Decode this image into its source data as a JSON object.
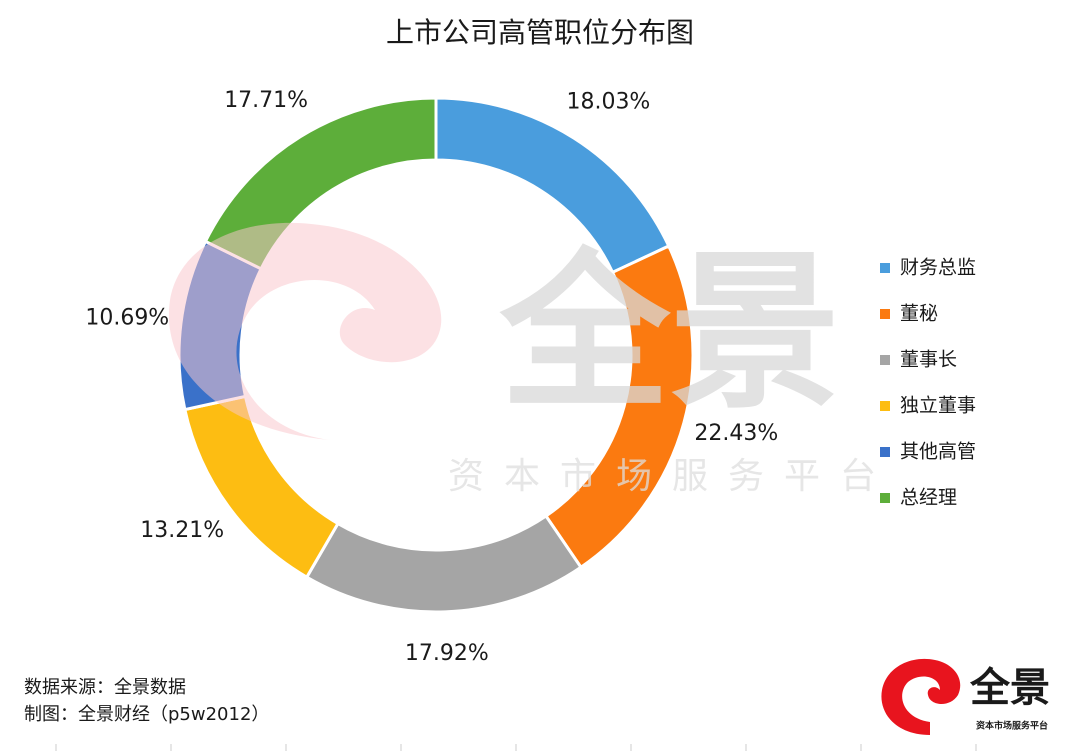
{
  "chart_data": {
    "type": "donut",
    "title": "上市公司高管职位分布图",
    "categories": [
      "财务总监",
      "董秘",
      "董事长",
      "独立董事",
      "其他高管",
      "总经理"
    ],
    "values": [
      18.03,
      22.43,
      17.92,
      13.21,
      10.69,
      17.71
    ],
    "value_labels": [
      "18.03%",
      "22.43%",
      "17.92%",
      "13.21%",
      "10.69%",
      "17.71%"
    ],
    "colors": [
      "#4a9ddd",
      "#fb7a10",
      "#a5a5a5",
      "#fdbd12",
      "#3a71c9",
      "#5dae3a"
    ],
    "legend": "right"
  },
  "watermark": {
    "big": "全景",
    "small": "资本市场服务平台"
  },
  "footer": {
    "source": "数据来源：全景数据",
    "credit": "制图：全景财经（p5w2012）"
  },
  "logo": {
    "name": "全景",
    "tagline": "资本市场服务平台"
  }
}
